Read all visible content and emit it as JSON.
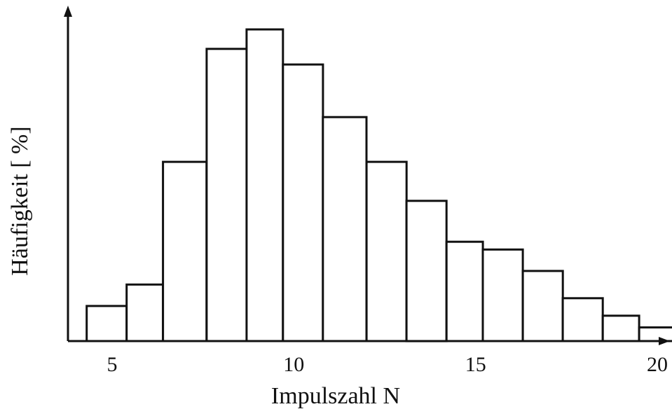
{
  "chart_data": {
    "type": "bar",
    "title": "",
    "xlabel": "Impulszahl N",
    "ylabel": "Häufigkeit [ %]",
    "x_ticks": [
      5,
      10,
      15,
      20
    ],
    "xlim": [
      3.5,
      21.5
    ],
    "ylim": [
      0,
      16
    ],
    "grid": false,
    "legend": "none",
    "bars": [
      {
        "x0": 4.3,
        "x1": 5.4,
        "value": 1.8
      },
      {
        "x0": 5.4,
        "x1": 6.4,
        "value": 2.9
      },
      {
        "x0": 6.4,
        "x1": 7.6,
        "value": 9.2
      },
      {
        "x0": 7.6,
        "x1": 8.7,
        "value": 15.0
      },
      {
        "x0": 8.7,
        "x1": 9.7,
        "value": 16.0
      },
      {
        "x0": 9.7,
        "x1": 10.8,
        "value": 14.2
      },
      {
        "x0": 10.8,
        "x1": 12.0,
        "value": 11.5
      },
      {
        "x0": 12.0,
        "x1": 13.1,
        "value": 9.2
      },
      {
        "x0": 13.1,
        "x1": 14.2,
        "value": 7.2
      },
      {
        "x0": 14.2,
        "x1": 15.2,
        "value": 5.1
      },
      {
        "x0": 15.2,
        "x1": 16.3,
        "value": 4.7
      },
      {
        "x0": 16.3,
        "x1": 17.4,
        "value": 3.6
      },
      {
        "x0": 17.4,
        "x1": 18.5,
        "value": 2.2
      },
      {
        "x0": 18.5,
        "x1": 19.5,
        "value": 1.3
      },
      {
        "x0": 19.5,
        "x1": 20.5,
        "value": 0.7
      }
    ]
  }
}
